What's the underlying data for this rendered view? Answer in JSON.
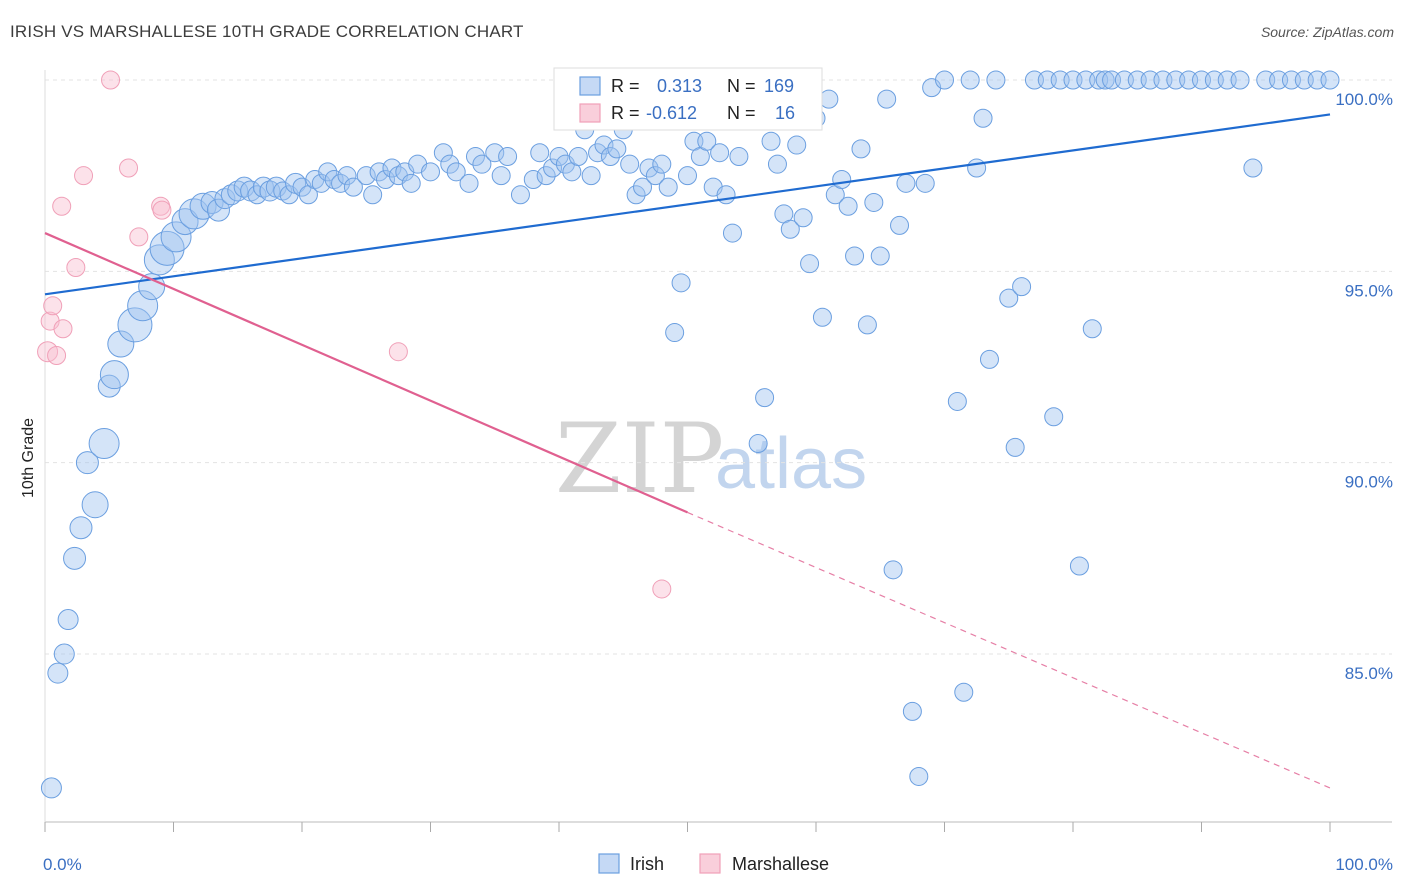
{
  "title": "IRISH VS MARSHALLESE 10TH GRADE CORRELATION CHART",
  "source": "Source: ZipAtlas.com",
  "watermark": {
    "part1": "ZIP",
    "part2": "atlas"
  },
  "colors": {
    "irish": "#6b9fe0",
    "irish_line": "#1f6bd0",
    "marshallese": "#f0a0b8",
    "marshallese_line": "#e06090",
    "tick": "#3a6fc2"
  },
  "legend": {
    "irish": {
      "r_label": "R =",
      "r_value": "0.313",
      "n_label": "N =",
      "n_value": "169"
    },
    "marshallese": {
      "r_label": "R =",
      "r_value": "-0.612",
      "n_label": "N =",
      "n_value": "16"
    }
  },
  "bottom_legend": {
    "irish": "Irish",
    "marshallese": "Marshallese"
  },
  "chart_data": {
    "type": "scatter",
    "title": "IRISH VS MARSHALLESE 10TH GRADE CORRELATION CHART",
    "xlabel": "",
    "ylabel": "10th Grade",
    "xlim": [
      0,
      100
    ],
    "ylim": [
      80.5,
      100.5
    ],
    "x_tick_labels": [
      "0.0%",
      "100.0%"
    ],
    "y_ticks": [
      85,
      90,
      95,
      100
    ],
    "y_tick_labels": [
      "85.0%",
      "90.0%",
      "95.0%",
      "100.0%"
    ],
    "grid": true,
    "legend_position": "top-center",
    "series": [
      {
        "name": "Irish",
        "trend": {
          "x": [
            0,
            100
          ],
          "y": [
            94.4,
            99.1
          ]
        },
        "points": [
          [
            0.5,
            81.5,
            10
          ],
          [
            1.0,
            84.5,
            10
          ],
          [
            1.5,
            85.0,
            10
          ],
          [
            1.8,
            85.9,
            10
          ],
          [
            2.3,
            87.5,
            11
          ],
          [
            2.8,
            88.3,
            11
          ],
          [
            3.3,
            90.0,
            11
          ],
          [
            3.9,
            88.9,
            13
          ],
          [
            4.6,
            90.5,
            15
          ],
          [
            5.0,
            92.0,
            11
          ],
          [
            5.4,
            92.3,
            14
          ],
          [
            5.9,
            93.1,
            13
          ],
          [
            7.0,
            93.6,
            17
          ],
          [
            7.6,
            94.1,
            15
          ],
          [
            8.3,
            94.6,
            13
          ],
          [
            8.9,
            95.3,
            15
          ],
          [
            9.5,
            95.6,
            17
          ],
          [
            10.2,
            95.9,
            15
          ],
          [
            10.9,
            96.3,
            13
          ],
          [
            11.6,
            96.5,
            15
          ],
          [
            12.3,
            96.7,
            13
          ],
          [
            13.0,
            96.8,
            11
          ],
          [
            13.5,
            96.6,
            11
          ],
          [
            14.0,
            96.9,
            10
          ],
          [
            14.5,
            97.0,
            10
          ],
          [
            15.0,
            97.1,
            10
          ],
          [
            15.5,
            97.2,
            10
          ],
          [
            16.0,
            97.1,
            10
          ],
          [
            16.5,
            97.0,
            9
          ],
          [
            17.0,
            97.2,
            10
          ],
          [
            17.5,
            97.1,
            10
          ],
          [
            18.0,
            97.2,
            10
          ],
          [
            18.5,
            97.1,
            9
          ],
          [
            19.0,
            97.0,
            9
          ],
          [
            19.5,
            97.3,
            10
          ],
          [
            20.0,
            97.2,
            9
          ],
          [
            20.5,
            97.0,
            9
          ],
          [
            21.0,
            97.4,
            9
          ],
          [
            21.5,
            97.3,
            9
          ],
          [
            22.0,
            97.6,
            9
          ],
          [
            22.5,
            97.4,
            9
          ],
          [
            23.0,
            97.3,
            9
          ],
          [
            23.5,
            97.5,
            9
          ],
          [
            24.0,
            97.2,
            9
          ],
          [
            25.0,
            97.5,
            9
          ],
          [
            25.5,
            97.0,
            9
          ],
          [
            26.0,
            97.6,
            9
          ],
          [
            26.5,
            97.4,
            9
          ],
          [
            27.0,
            97.7,
            9
          ],
          [
            27.5,
            97.5,
            9
          ],
          [
            28.0,
            97.6,
            9
          ],
          [
            28.5,
            97.3,
            9
          ],
          [
            29.0,
            97.8,
            9
          ],
          [
            30.0,
            97.6,
            9
          ],
          [
            31.0,
            98.1,
            9
          ],
          [
            31.5,
            97.8,
            9
          ],
          [
            32.0,
            97.6,
            9
          ],
          [
            33.0,
            97.3,
            9
          ],
          [
            33.5,
            98.0,
            9
          ],
          [
            34.0,
            97.8,
            9
          ],
          [
            35.0,
            98.1,
            9
          ],
          [
            35.5,
            97.5,
            9
          ],
          [
            36.0,
            98.0,
            9
          ],
          [
            37.0,
            97.0,
            9
          ],
          [
            38.0,
            97.4,
            9
          ],
          [
            38.5,
            98.1,
            9
          ],
          [
            39.0,
            97.5,
            9
          ],
          [
            39.5,
            97.7,
            9
          ],
          [
            40.0,
            98.0,
            9
          ],
          [
            40.5,
            97.8,
            9
          ],
          [
            41.0,
            97.6,
            9
          ],
          [
            41.5,
            98.0,
            9
          ],
          [
            42.0,
            98.7,
            9
          ],
          [
            42.5,
            97.5,
            9
          ],
          [
            43.0,
            98.1,
            9
          ],
          [
            43.5,
            98.3,
            9
          ],
          [
            44.0,
            98.0,
            9
          ],
          [
            44.5,
            98.2,
            9
          ],
          [
            45.0,
            98.7,
            9
          ],
          [
            45.5,
            97.8,
            9
          ],
          [
            46.0,
            97.0,
            9
          ],
          [
            46.5,
            97.2,
            9
          ],
          [
            47.0,
            97.7,
            9
          ],
          [
            47.5,
            97.5,
            9
          ],
          [
            48.0,
            97.8,
            9
          ],
          [
            48.5,
            97.2,
            9
          ],
          [
            49.0,
            93.4,
            9
          ],
          [
            49.5,
            94.7,
            9
          ],
          [
            50.0,
            97.5,
            9
          ],
          [
            50.5,
            98.4,
            9
          ],
          [
            51.0,
            98.0,
            9
          ],
          [
            51.5,
            98.4,
            9
          ],
          [
            52.0,
            97.2,
            9
          ],
          [
            52.5,
            98.1,
            9
          ],
          [
            53.0,
            97.0,
            9
          ],
          [
            53.5,
            96.0,
            9
          ],
          [
            54.0,
            98.0,
            9
          ],
          [
            55.0,
            99.0,
            9
          ],
          [
            55.5,
            90.5,
            9
          ],
          [
            56.0,
            91.7,
            9
          ],
          [
            56.5,
            98.4,
            9
          ],
          [
            57.0,
            97.8,
            9
          ],
          [
            57.5,
            96.5,
            9
          ],
          [
            58.0,
            96.1,
            9
          ],
          [
            58.5,
            98.3,
            9
          ],
          [
            59.0,
            96.4,
            9
          ],
          [
            59.5,
            95.2,
            9
          ],
          [
            60.0,
            99.0,
            9
          ],
          [
            60.5,
            93.8,
            9
          ],
          [
            61.0,
            99.5,
            9
          ],
          [
            61.5,
            97.0,
            9
          ],
          [
            62.0,
            97.4,
            9
          ],
          [
            62.5,
            96.7,
            9
          ],
          [
            63.0,
            95.4,
            9
          ],
          [
            63.5,
            98.2,
            9
          ],
          [
            64.0,
            93.6,
            9
          ],
          [
            64.5,
            96.8,
            9
          ],
          [
            65.0,
            95.4,
            9
          ],
          [
            65.5,
            99.5,
            9
          ],
          [
            66.0,
            87.2,
            9
          ],
          [
            66.5,
            96.2,
            9
          ],
          [
            67.0,
            97.3,
            9
          ],
          [
            67.5,
            83.5,
            9
          ],
          [
            68.0,
            81.8,
            9
          ],
          [
            68.5,
            97.3,
            9
          ],
          [
            69.0,
            99.8,
            9
          ],
          [
            70.0,
            100.0,
            9
          ],
          [
            71.0,
            91.6,
            9
          ],
          [
            71.5,
            84.0,
            9
          ],
          [
            72.0,
            100.0,
            9
          ],
          [
            72.5,
            97.7,
            9
          ],
          [
            73.0,
            99.0,
            9
          ],
          [
            73.5,
            92.7,
            9
          ],
          [
            74.0,
            100.0,
            9
          ],
          [
            75.0,
            94.3,
            9
          ],
          [
            75.5,
            90.4,
            9
          ],
          [
            76.0,
            94.6,
            9
          ],
          [
            77.0,
            100.0,
            9
          ],
          [
            78.0,
            100.0,
            9
          ],
          [
            78.5,
            91.2,
            9
          ],
          [
            79.0,
            100.0,
            9
          ],
          [
            80.0,
            100.0,
            9
          ],
          [
            80.5,
            87.3,
            9
          ],
          [
            81.0,
            100.0,
            9
          ],
          [
            81.5,
            93.5,
            9
          ],
          [
            82.0,
            100.0,
            9
          ],
          [
            82.5,
            100.0,
            9
          ],
          [
            83.0,
            100.0,
            9
          ],
          [
            84.0,
            100.0,
            9
          ],
          [
            85.0,
            100.0,
            9
          ],
          [
            86.0,
            100.0,
            9
          ],
          [
            87.0,
            100.0,
            9
          ],
          [
            88.0,
            100.0,
            9
          ],
          [
            89.0,
            100.0,
            9
          ],
          [
            90.0,
            100.0,
            9
          ],
          [
            91.0,
            100.0,
            9
          ],
          [
            92.0,
            100.0,
            9
          ],
          [
            93.0,
            100.0,
            9
          ],
          [
            94.0,
            97.7,
            9
          ],
          [
            95.0,
            100.0,
            9
          ],
          [
            96.0,
            100.0,
            9
          ],
          [
            97.0,
            100.0,
            9
          ],
          [
            98.0,
            100.0,
            9
          ],
          [
            99.0,
            100.0,
            9
          ],
          [
            100.0,
            100.0,
            9
          ]
        ]
      },
      {
        "name": "Marshallese",
        "trend": {
          "x": [
            0,
            50
          ],
          "y": [
            96.0,
            88.7
          ]
        },
        "trend_dashed": {
          "x": [
            50,
            100
          ],
          "y": [
            88.7,
            81.5
          ]
        },
        "points": [
          [
            0.2,
            92.9,
            10
          ],
          [
            0.4,
            93.7,
            9
          ],
          [
            0.6,
            94.1,
            9
          ],
          [
            0.9,
            92.8,
            9
          ],
          [
            1.4,
            93.5,
            9
          ],
          [
            1.3,
            96.7,
            9
          ],
          [
            2.4,
            95.1,
            9
          ],
          [
            3.0,
            97.5,
            9
          ],
          [
            5.1,
            100.0,
            9
          ],
          [
            6.5,
            97.7,
            9
          ],
          [
            7.3,
            95.9,
            9
          ],
          [
            9.0,
            96.7,
            9
          ],
          [
            9.1,
            96.6,
            9
          ],
          [
            27.5,
            92.9,
            9
          ],
          [
            48.0,
            99.2,
            9
          ],
          [
            48.0,
            86.7,
            9
          ]
        ]
      }
    ]
  }
}
